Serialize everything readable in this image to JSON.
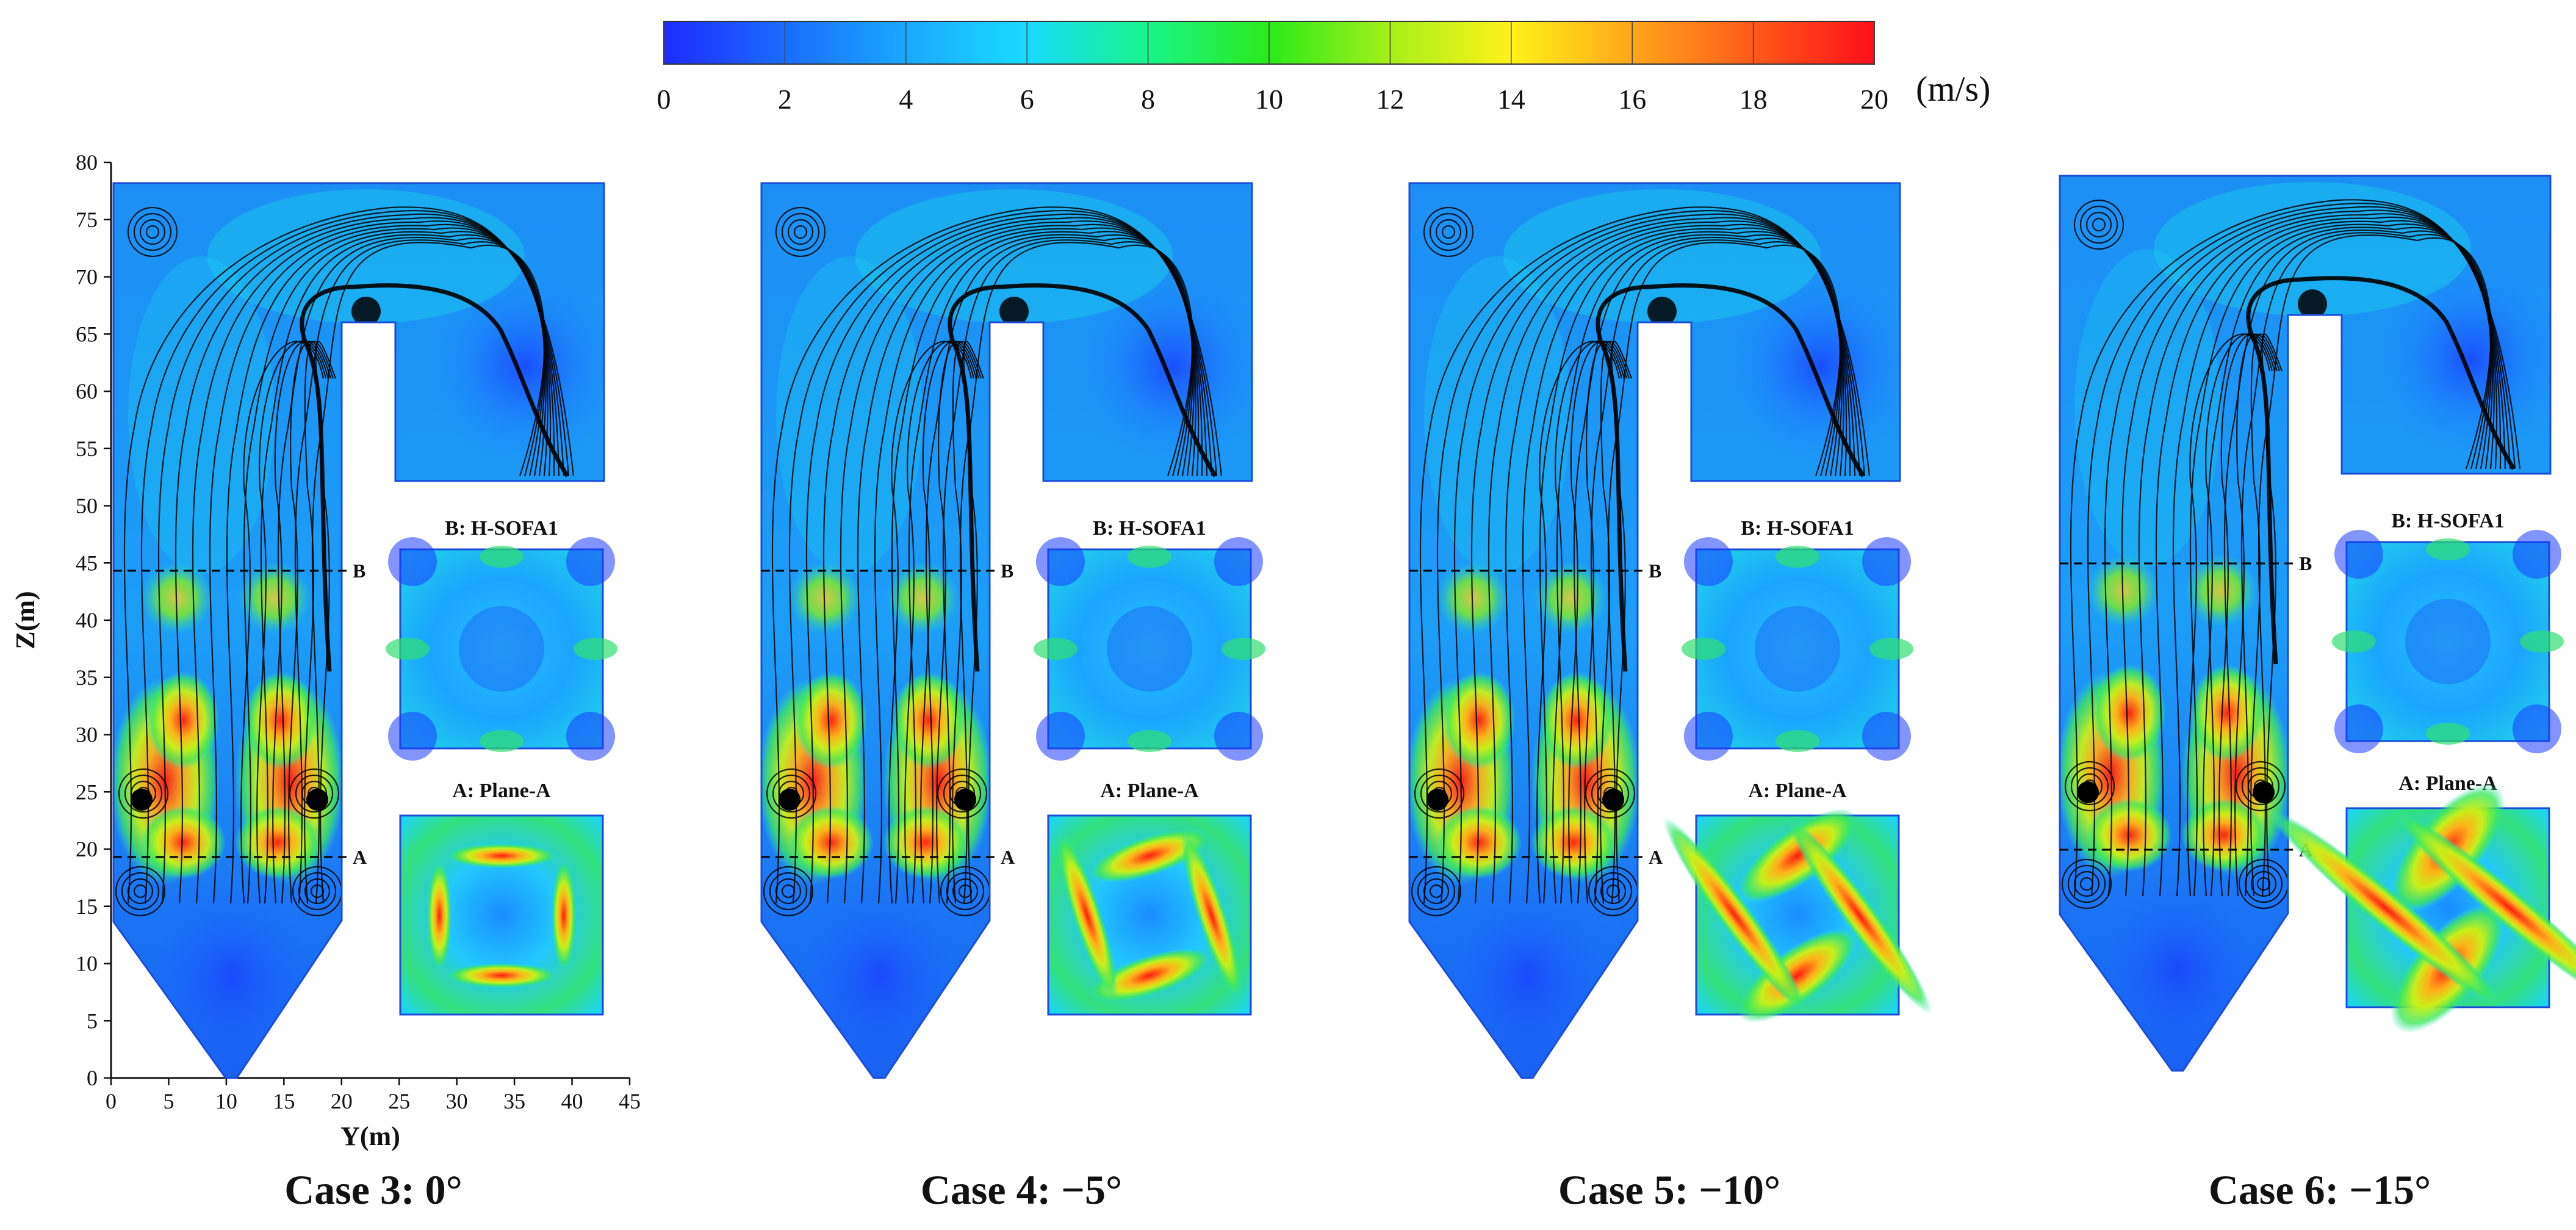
{
  "colorbar": {
    "ticks": [
      "0",
      "2",
      "4",
      "6",
      "8",
      "10",
      "12",
      "14",
      "16",
      "18",
      "20"
    ],
    "unit": "(m/s)",
    "colors": [
      "#1e2bff",
      "#1a6cff",
      "#1aa8ff",
      "#19dcff",
      "#19f58a",
      "#2bea1a",
      "#a6ef1a",
      "#fff21a",
      "#ffa61a",
      "#ff5a1a",
      "#ff0f1a"
    ]
  },
  "axes": {
    "ylabel": "Z(m)",
    "xlabel": "Y(m)",
    "yticks": [
      "0",
      "5",
      "10",
      "15",
      "20",
      "25",
      "30",
      "35",
      "40",
      "45",
      "50",
      "55",
      "60",
      "65",
      "70",
      "75",
      "80"
    ],
    "xticks": [
      "0",
      "5",
      "10",
      "15",
      "20",
      "25",
      "30",
      "35",
      "40",
      "45"
    ]
  },
  "plane_markers": {
    "upper": "B",
    "lower": "A"
  },
  "insets": {
    "upper_title": "B: H-SOFA1",
    "lower_title": "A: Plane-A"
  },
  "cases": [
    {
      "title": "Case 3: 0°"
    },
    {
      "title": "Case 4: −5°"
    },
    {
      "title": "Case 5: −10°"
    },
    {
      "title": "Case 6: −15°"
    }
  ]
}
